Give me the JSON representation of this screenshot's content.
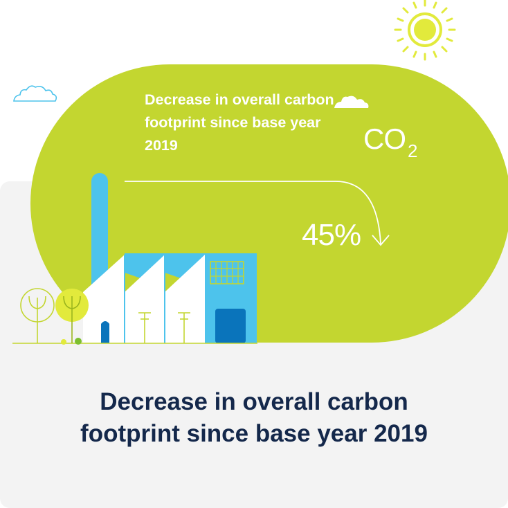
{
  "infographic": {
    "blob_text": "Decrease in overall carbon footprint since base year 2019",
    "co2_label": "CO",
    "co2_subscript": "2",
    "percent": "45%",
    "headline_line1": "Decrease in overall carbon",
    "headline_line2": "footprint since base year 2019"
  },
  "icons": [
    "sun-icon",
    "cloud-icon",
    "factory-icon",
    "tree-icon",
    "arrow-icon"
  ],
  "colors": {
    "green": "#c3d630",
    "blue": "#4dc3ec",
    "dark_blue": "#0a74bb",
    "navy": "#14284b",
    "sun": "#e2ea3c",
    "panel_bg": "#f3f3f3"
  }
}
